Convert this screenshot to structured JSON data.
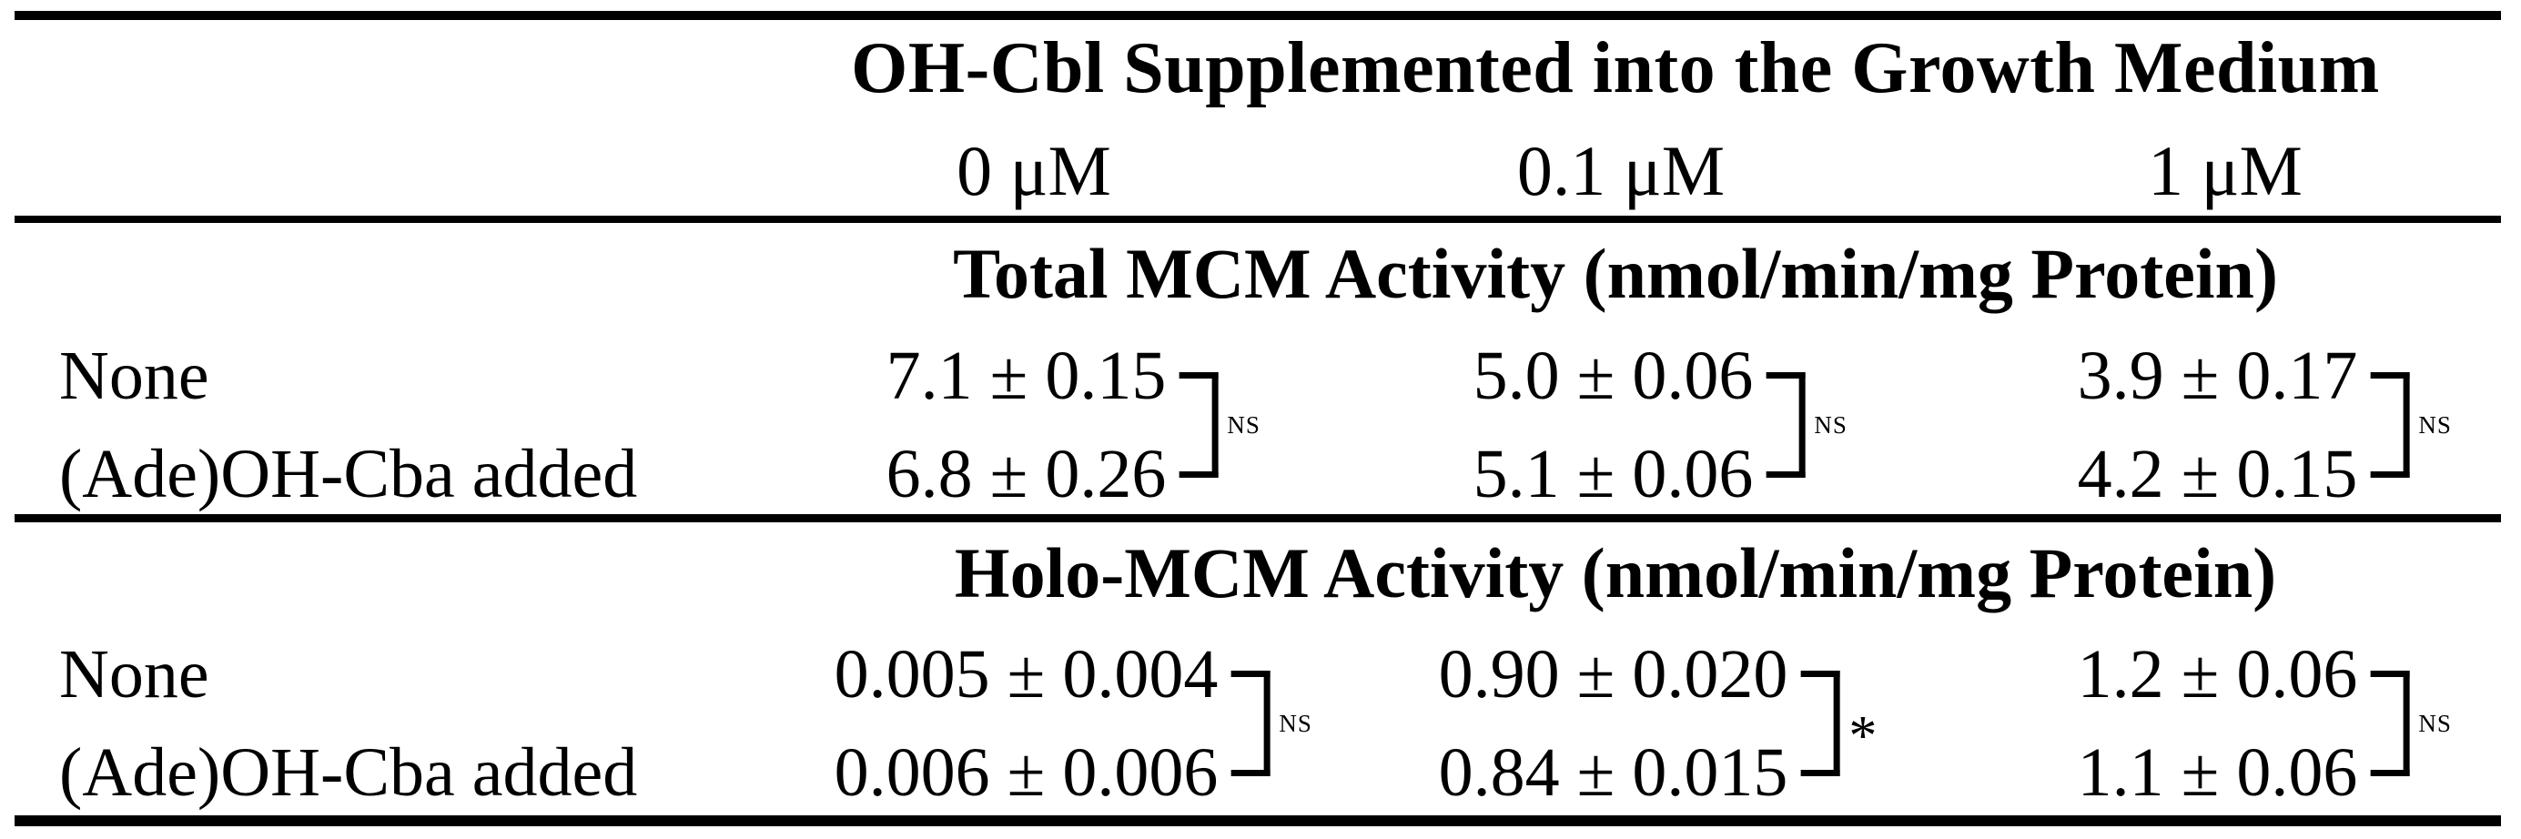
{
  "table": {
    "col_group_header": "OH-Cbl Supplemented into the Growth Medium",
    "columns": [
      "0 μM",
      "0.1 μM",
      "1 μM"
    ],
    "sections": [
      {
        "header": "Total MCM Activity (nmol/min/mg Protein)",
        "rows": [
          {
            "label": "None",
            "values": [
              "7.1 ± 0.15",
              "5.0 ± 0.06",
              "3.9 ± 0.17"
            ]
          },
          {
            "label": "(Ade)OH-Cba added",
            "values": [
              "6.8 ± 0.26",
              "5.1 ± 0.06",
              "4.2 ± 0.15"
            ]
          }
        ],
        "significance": [
          "NS",
          "NS",
          "NS"
        ]
      },
      {
        "header": "Holo-MCM Activity (nmol/min/mg Protein)",
        "rows": [
          {
            "label": "None",
            "values": [
              "0.005 ± 0.004",
              "0.90 ± 0.020",
              "1.2 ± 0.06"
            ]
          },
          {
            "label": "(Ade)OH-Cba added",
            "values": [
              "0.006 ± 0.006",
              "0.84 ± 0.015",
              "1.1 ± 0.06"
            ]
          }
        ],
        "significance": [
          "NS",
          "*",
          "NS"
        ]
      }
    ]
  },
  "chart_data": {
    "type": "table",
    "title": "OH-Cbl Supplemented into the Growth Medium",
    "categories": [
      "0 μM",
      "0.1 μM",
      "1 μM"
    ],
    "series": [
      {
        "name": "Total MCM Activity (nmol/min/mg Protein) — None",
        "values": [
          7.1,
          5.0,
          3.9
        ],
        "errors": [
          0.15,
          0.06,
          0.17
        ]
      },
      {
        "name": "Total MCM Activity (nmol/min/mg Protein) — (Ade)OH-Cba added",
        "values": [
          6.8,
          5.1,
          4.2
        ],
        "errors": [
          0.26,
          0.06,
          0.15
        ]
      },
      {
        "name": "Holo-MCM Activity (nmol/min/mg Protein) — None",
        "values": [
          0.005,
          0.9,
          1.2
        ],
        "errors": [
          0.004,
          0.02,
          0.06
        ]
      },
      {
        "name": "Holo-MCM Activity (nmol/min/mg Protein) — (Ade)OH-Cba added",
        "values": [
          0.006,
          0.84,
          1.1
        ],
        "errors": [
          0.006,
          0.015,
          0.06
        ]
      }
    ],
    "annotations": {
      "total_mcm_significance": [
        "NS",
        "NS",
        "NS"
      ],
      "holo_mcm_significance": [
        "NS",
        "*",
        "NS"
      ]
    }
  },
  "colors": {
    "background": "#ffffff",
    "text": "#000000",
    "rule": "#000000"
  }
}
